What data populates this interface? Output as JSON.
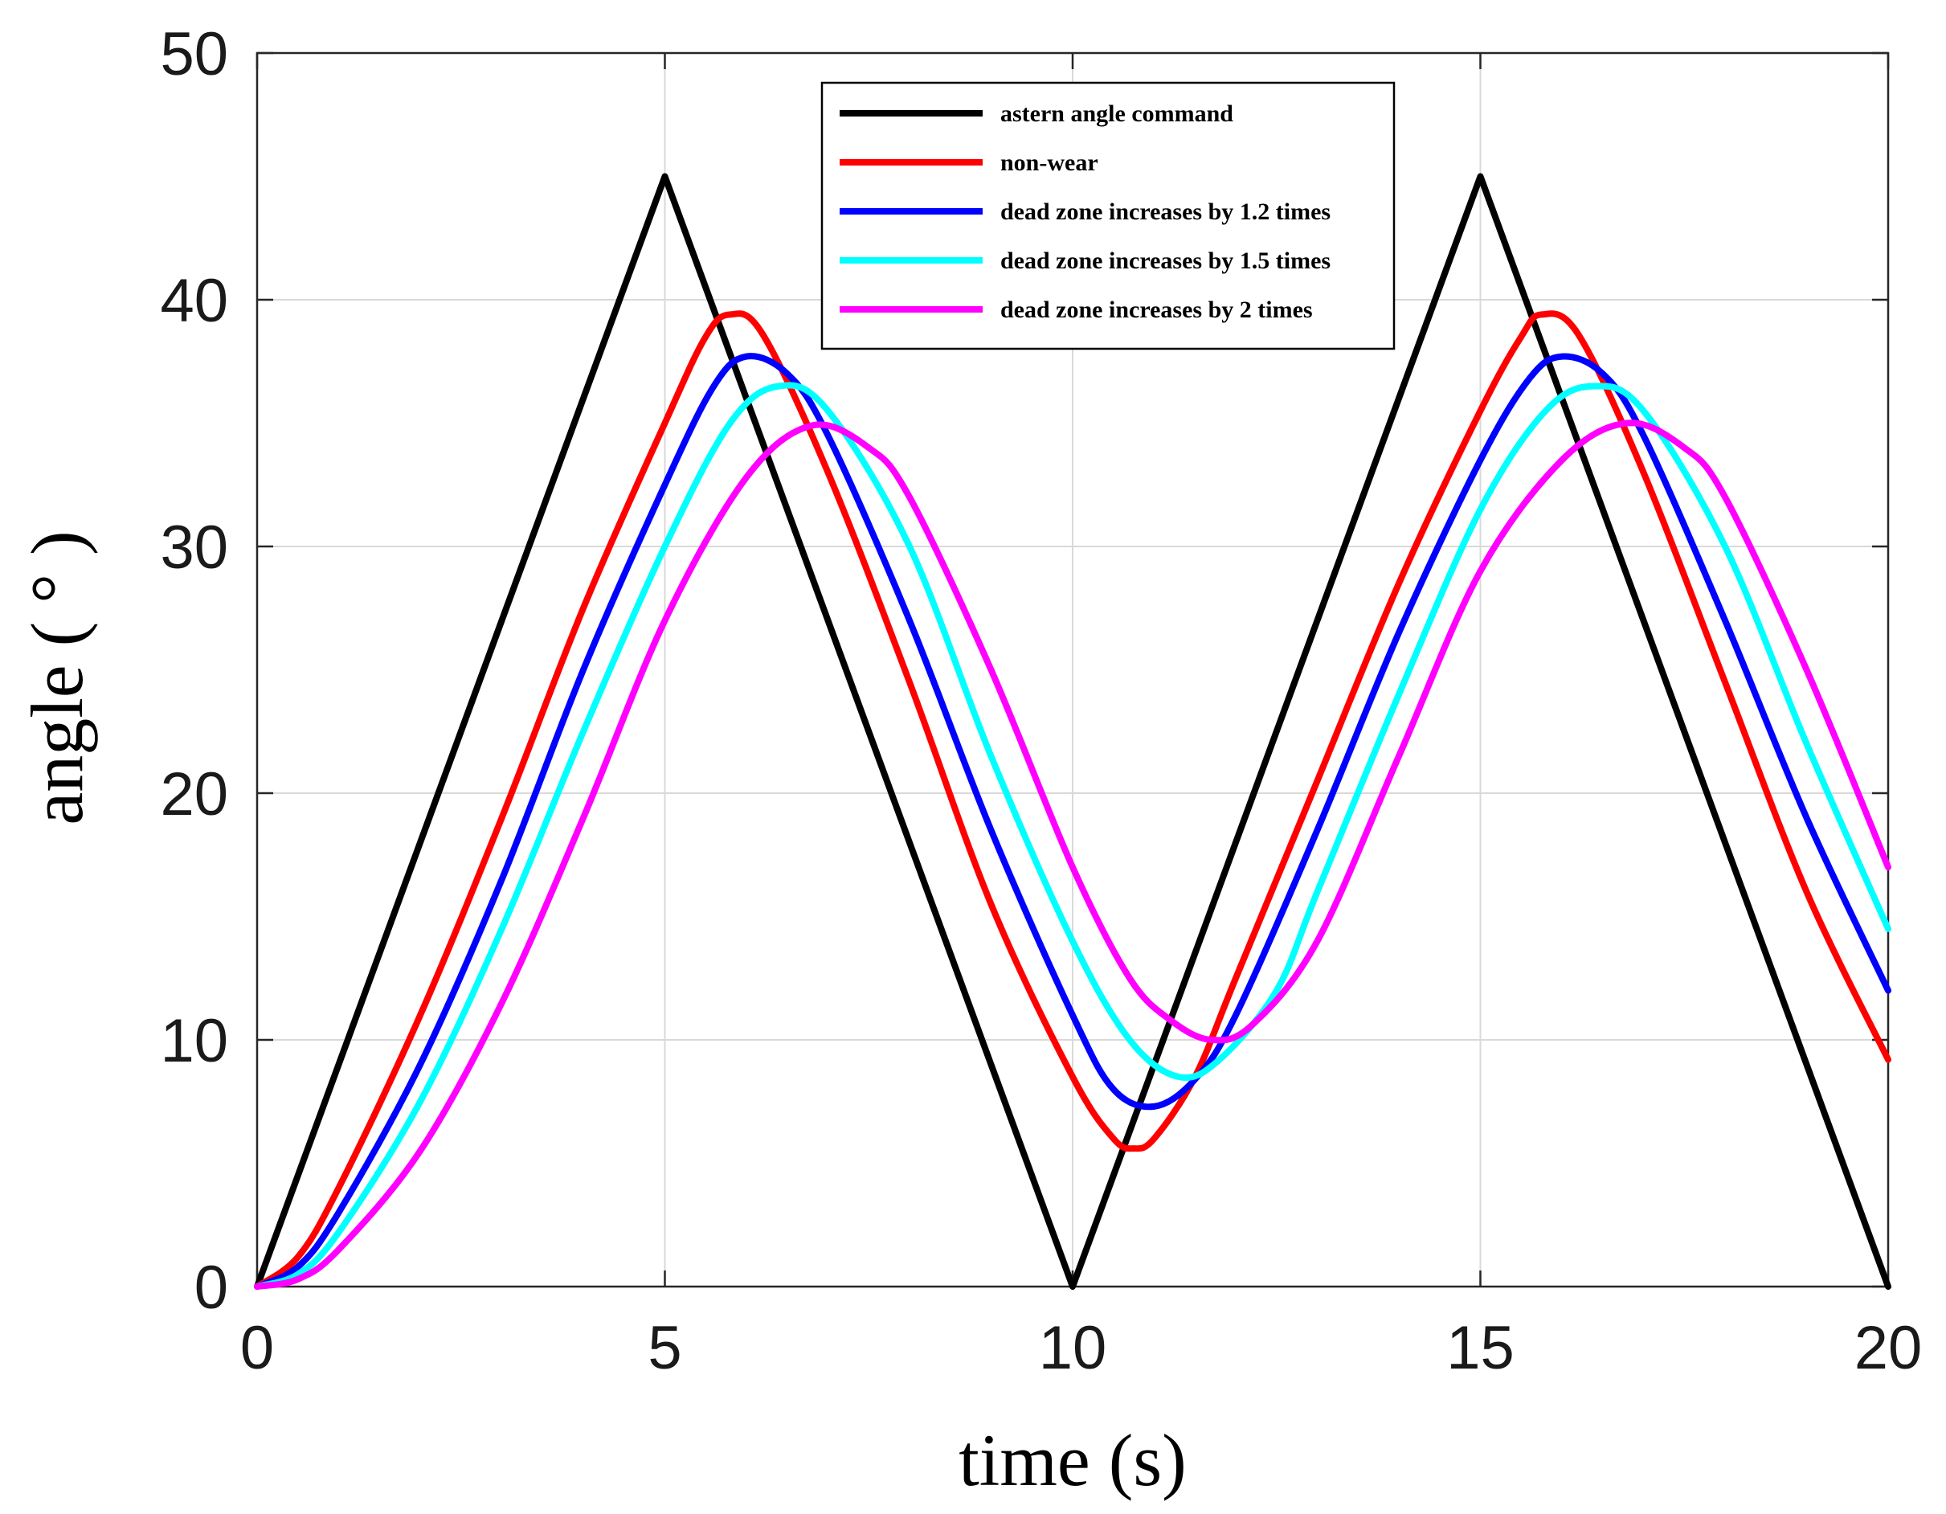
{
  "chart_data": {
    "type": "line",
    "title": "",
    "xlabel": "time (s)",
    "ylabel": "angle ( ° )",
    "xlim": [
      0,
      20
    ],
    "ylim": [
      0,
      50
    ],
    "xticks": [
      0,
      5,
      10,
      15,
      20
    ],
    "yticks": [
      0,
      10,
      20,
      30,
      40,
      50
    ],
    "grid": true,
    "legend_position": "top-center",
    "series": [
      {
        "name": "astern angle command",
        "color": "#000000",
        "points": [
          [
            0,
            0
          ],
          [
            5,
            45
          ],
          [
            10,
            0
          ],
          [
            15,
            45
          ],
          [
            20,
            0
          ]
        ]
      },
      {
        "name": "non-wear",
        "color": "#ff0000",
        "points": [
          [
            0,
            0
          ],
          [
            0.5,
            1.2
          ],
          [
            1,
            4
          ],
          [
            2,
            11
          ],
          [
            3,
            19
          ],
          [
            4,
            27.5
          ],
          [
            5,
            35
          ],
          [
            5.5,
            38.5
          ],
          [
            5.8,
            39.4
          ],
          [
            6.2,
            38.6
          ],
          [
            7,
            33
          ],
          [
            8,
            24.5
          ],
          [
            9,
            15.5
          ],
          [
            10,
            8.5
          ],
          [
            10.5,
            6
          ],
          [
            10.75,
            5.6
          ],
          [
            11,
            6
          ],
          [
            11.5,
            8.5
          ],
          [
            12,
            12.5
          ],
          [
            13,
            20.5
          ],
          [
            14,
            28.5
          ],
          [
            15,
            35.5
          ],
          [
            15.5,
            38.5
          ],
          [
            15.75,
            39.4
          ],
          [
            16.2,
            38.6
          ],
          [
            17,
            33
          ],
          [
            18,
            24.5
          ],
          [
            19,
            16
          ],
          [
            20,
            9.2
          ]
        ]
      },
      {
        "name": "dead zone increases by 1.2 times",
        "color": "#0000ff",
        "points": [
          [
            0,
            0
          ],
          [
            0.5,
            0.8
          ],
          [
            1,
            3
          ],
          [
            2,
            9
          ],
          [
            3,
            16.5
          ],
          [
            4,
            25
          ],
          [
            5,
            32.5
          ],
          [
            5.6,
            36.5
          ],
          [
            6,
            37.7
          ],
          [
            6.5,
            37
          ],
          [
            7,
            34.5
          ],
          [
            8,
            27
          ],
          [
            9,
            18.5
          ],
          [
            10,
            11
          ],
          [
            10.5,
            8
          ],
          [
            11,
            7.3
          ],
          [
            11.5,
            8.4
          ],
          [
            12,
            11
          ],
          [
            13,
            18.5
          ],
          [
            14,
            26.5
          ],
          [
            15,
            33.5
          ],
          [
            15.6,
            36.8
          ],
          [
            16,
            37.7
          ],
          [
            16.5,
            37
          ],
          [
            17,
            34.5
          ],
          [
            18,
            27
          ],
          [
            19,
            19
          ],
          [
            20,
            12
          ]
        ]
      },
      {
        "name": "dead zone increases by 1.5 times",
        "color": "#00ffff",
        "points": [
          [
            0,
            0
          ],
          [
            0.5,
            0.5
          ],
          [
            1,
            2.2
          ],
          [
            2,
            7.5
          ],
          [
            3,
            14.5
          ],
          [
            4,
            22.5
          ],
          [
            5,
            30
          ],
          [
            5.8,
            35
          ],
          [
            6.4,
            36.5
          ],
          [
            7,
            35.5
          ],
          [
            8,
            30
          ],
          [
            9,
            21.5
          ],
          [
            10,
            14
          ],
          [
            10.7,
            10
          ],
          [
            11.3,
            8.5
          ],
          [
            11.8,
            9.2
          ],
          [
            12.5,
            12
          ],
          [
            13,
            16
          ],
          [
            14,
            24
          ],
          [
            15,
            31.5
          ],
          [
            15.8,
            35.5
          ],
          [
            16.4,
            36.5
          ],
          [
            17,
            35.5
          ],
          [
            18,
            30
          ],
          [
            19,
            22
          ],
          [
            20,
            14.5
          ]
        ]
      },
      {
        "name": "dead zone increases by 2 times",
        "color": "#ff00ff",
        "points": [
          [
            0,
            0
          ],
          [
            0.5,
            0.3
          ],
          [
            1,
            1.5
          ],
          [
            2,
            5.5
          ],
          [
            3,
            11.5
          ],
          [
            4,
            19
          ],
          [
            5,
            27
          ],
          [
            6,
            32.8
          ],
          [
            6.8,
            34.9
          ],
          [
            7.5,
            34
          ],
          [
            8,
            32
          ],
          [
            9,
            25
          ],
          [
            10,
            17
          ],
          [
            10.7,
            12.5
          ],
          [
            11.2,
            10.8
          ],
          [
            11.7,
            10
          ],
          [
            12.2,
            10.6
          ],
          [
            13,
            14
          ],
          [
            14,
            21.5
          ],
          [
            15,
            29
          ],
          [
            16,
            33.5
          ],
          [
            16.8,
            35
          ],
          [
            17.5,
            34
          ],
          [
            18,
            32
          ],
          [
            19,
            25
          ],
          [
            20,
            17
          ]
        ]
      }
    ]
  }
}
